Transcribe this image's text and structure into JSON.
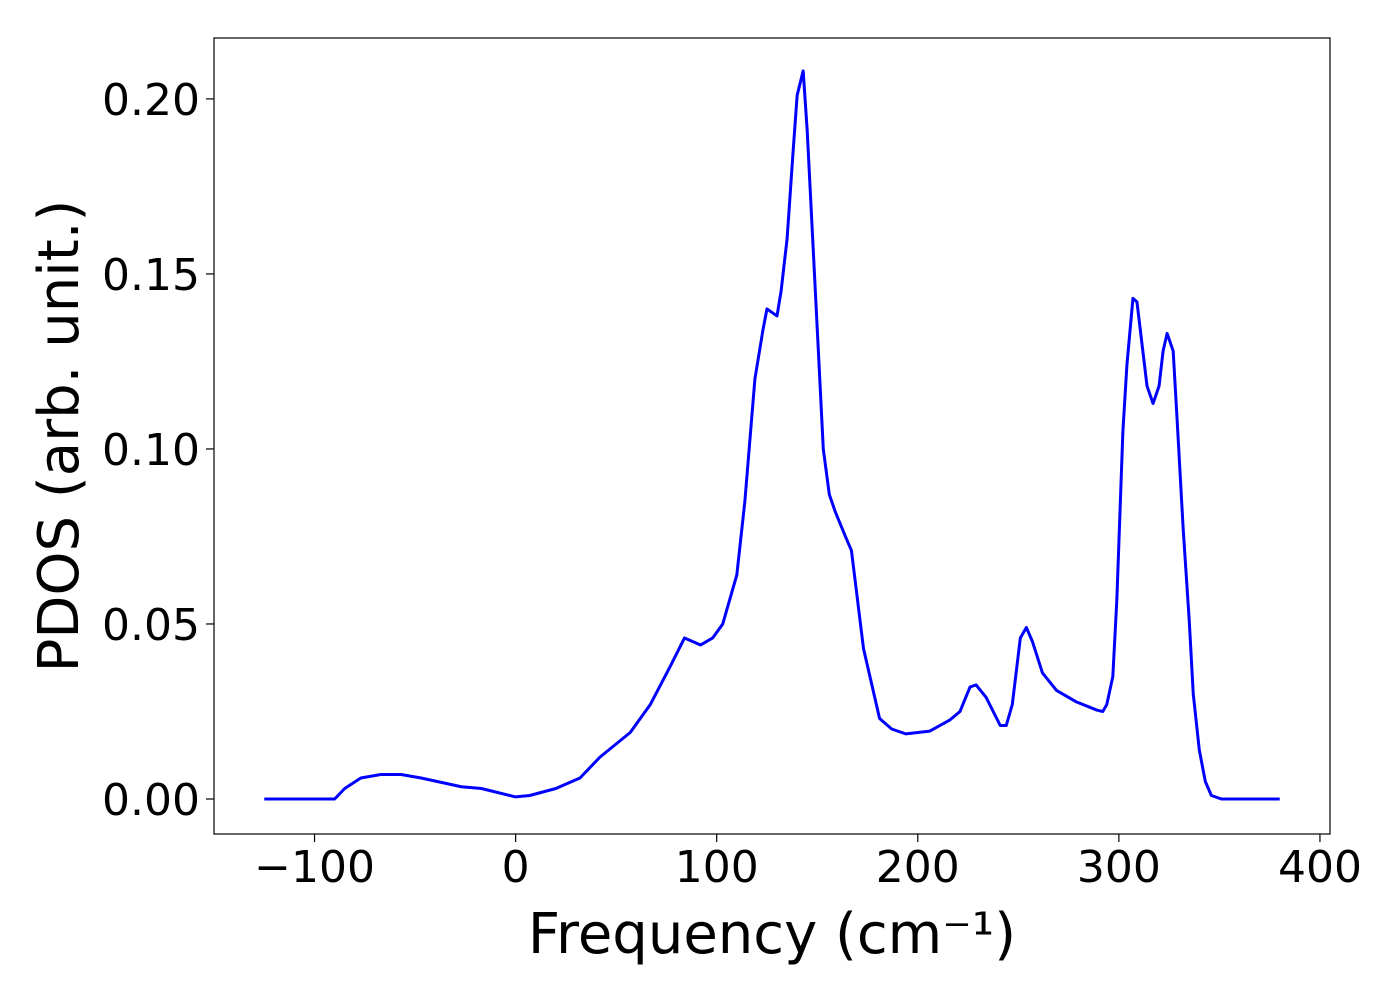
{
  "chart_data": {
    "type": "line",
    "xlabel": "Frequency (cm⁻¹)",
    "ylabel": "PDOS (arb. unit.)",
    "color": "#0000ff",
    "x": [
      -125,
      -90,
      -85,
      -77,
      -67,
      -57,
      -47,
      -27,
      -17,
      0,
      7,
      20,
      32,
      42,
      57,
      67,
      77,
      84,
      92,
      98,
      103,
      110,
      114,
      119,
      123,
      125,
      130,
      132,
      135,
      138,
      140,
      143,
      145,
      148,
      151,
      153,
      156,
      159,
      164,
      167,
      170,
      173,
      177,
      181,
      187,
      194,
      206,
      216,
      221,
      226,
      229,
      234,
      241,
      244,
      247,
      251,
      254,
      257,
      262,
      269,
      279,
      289,
      292,
      294,
      297,
      299,
      302,
      304,
      307,
      309,
      314,
      317,
      320,
      322,
      324,
      327,
      329,
      332,
      335,
      337,
      340,
      343,
      346,
      351,
      380
    ],
    "values": [
      0,
      0,
      0.003,
      0.006,
      0.007,
      0.007,
      0.006,
      0.0035,
      0.003,
      0.0006,
      0.001,
      0.003,
      0.006,
      0.012,
      0.019,
      0.027,
      0.038,
      0.046,
      0.044,
      0.046,
      0.05,
      0.064,
      0.085,
      0.12,
      0.134,
      0.14,
      0.138,
      0.145,
      0.16,
      0.185,
      0.201,
      0.208,
      0.191,
      0.157,
      0.123,
      0.1,
      0.087,
      0.082,
      0.075,
      0.071,
      0.057,
      0.043,
      0.033,
      0.023,
      0.02,
      0.0186,
      0.0194,
      0.0226,
      0.025,
      0.032,
      0.0326,
      0.029,
      0.021,
      0.021,
      0.027,
      0.046,
      0.049,
      0.045,
      0.036,
      0.031,
      0.0277,
      0.0254,
      0.025,
      0.027,
      0.035,
      0.057,
      0.105,
      0.124,
      0.143,
      0.142,
      0.118,
      0.113,
      0.118,
      0.128,
      0.133,
      0.128,
      0.108,
      0.077,
      0.051,
      0.03,
      0.014,
      0.005,
      0.001,
      0,
      0
    ],
    "xlim": [
      -150,
      405
    ],
    "ylim": [
      -0.01,
      0.2174
    ],
    "xticks": [
      {
        "value": -100,
        "label": "−100"
      },
      0,
      100,
      200,
      300,
      400
    ],
    "yticks": [
      {
        "value": 0,
        "label": "0.00"
      },
      0.05,
      {
        "value": 0.1,
        "label": "0.10"
      },
      0.15,
      {
        "value": 0.2,
        "label": "0.20"
      }
    ],
    "grid": false
  }
}
